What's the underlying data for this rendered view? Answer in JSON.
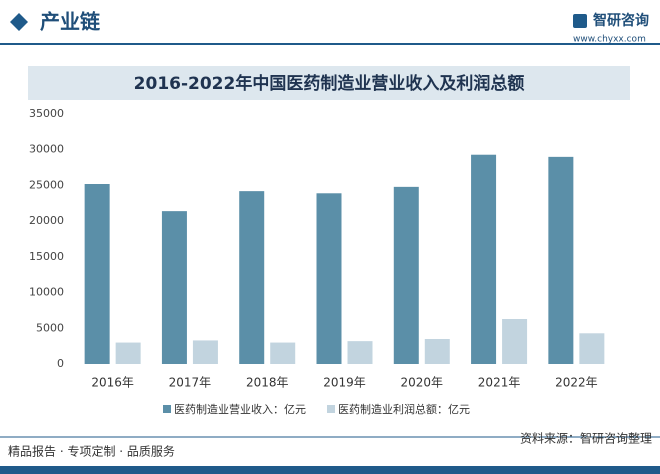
{
  "header": {
    "section": "产业链",
    "brand": "智研咨询",
    "url": "www.chyxx.com"
  },
  "chart_data": {
    "type": "bar",
    "title": "2016-2022年中国医药制造业营业收入及利润总额",
    "categories": [
      "2016年",
      "2017年",
      "2018年",
      "2019年",
      "2020年",
      "2021年",
      "2022年"
    ],
    "series": [
      {
        "name": "医药制造业营业收入：亿元",
        "color": "#5b8fa8",
        "values": [
          25200,
          21400,
          24200,
          23900,
          24800,
          29300,
          29000
        ]
      },
      {
        "name": "医药制造业利润总额：亿元",
        "color": "#c2d4df",
        "values": [
          3000,
          3300,
          3000,
          3200,
          3500,
          6300,
          4300
        ]
      }
    ],
    "ylim": [
      0,
      35000
    ],
    "yticks": [
      0,
      5000,
      10000,
      15000,
      20000,
      25000,
      30000,
      35000
    ],
    "grid": false
  },
  "footer": {
    "slogan": "精品报告 · 专项定制 · 品质服务",
    "source": "资料来源：智研咨询整理"
  }
}
